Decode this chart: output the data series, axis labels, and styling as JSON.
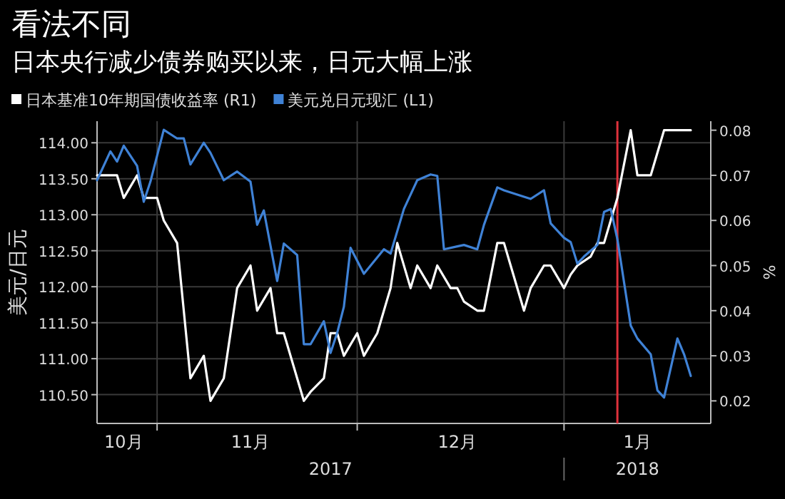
{
  "chart_data": {
    "type": "line",
    "title": "看法不同",
    "subtitle": "日本央行减少债券购买以来，日元大幅上涨",
    "ylabel": "美元/日元",
    "y2label": "%",
    "xlim": [
      "2017-10-23",
      "2018-01-23"
    ],
    "xticks": [
      {
        "value": "2017-10-27",
        "label": "10月"
      },
      {
        "value": "2017-11-01",
        "label": null
      },
      {
        "value": "2017-11-15",
        "label": "11月"
      },
      {
        "value": "2017-12-01",
        "label": null
      },
      {
        "value": "2017-12-16",
        "label": "12月"
      },
      {
        "value": "2018-01-01",
        "label": null
      },
      {
        "value": "2018-01-12",
        "label": "1月"
      }
    ],
    "ylim": [
      110.1,
      114.3
    ],
    "yticks": [
      {
        "value": 110.5,
        "label": "110.50"
      },
      {
        "value": 111,
        "label": "111.00"
      },
      {
        "value": 111.5,
        "label": "111.50"
      },
      {
        "value": 112,
        "label": "112.00"
      },
      {
        "value": 112.5,
        "label": "112.50"
      },
      {
        "value": 113,
        "label": "113.00"
      },
      {
        "value": 113.5,
        "label": "113.50"
      },
      {
        "value": 114,
        "label": "114.00"
      }
    ],
    "y2lim": [
      0.015,
      0.082
    ],
    "y2ticks": [
      0.02,
      0.03,
      0.04,
      0.05,
      0.06,
      0.07,
      0.08
    ],
    "grid": true,
    "legend": "top left",
    "marker": "none",
    "line_style": "solid",
    "ref_lines": [
      {
        "axis": "x",
        "value": "2018-01-09",
        "color": "#e0323c"
      }
    ],
    "annotations": [
      "2017",
      "2018"
    ],
    "series": [
      {
        "name": "日本基准10年期国债收益率 (R1)",
        "color": "#ffffff",
        "axis": "y2",
        "x": [
          "2017-10-23",
          "2017-10-26",
          "2017-10-27",
          "2017-10-29",
          "2017-10-30",
          "2017-11-01",
          "2017-11-02",
          "2017-11-04",
          "2017-11-06",
          "2017-11-08",
          "2017-11-09",
          "2017-11-11",
          "2017-11-12",
          "2017-11-13",
          "2017-11-15",
          "2017-11-16",
          "2017-11-18",
          "2017-11-19",
          "2017-11-20",
          "2017-11-22",
          "2017-11-23",
          "2017-11-24",
          "2017-11-26",
          "2017-11-27",
          "2017-11-28",
          "2017-11-29",
          "2017-12-01",
          "2017-12-02",
          "2017-12-04",
          "2017-12-06",
          "2017-12-07",
          "2017-12-09",
          "2017-12-10",
          "2017-12-12",
          "2017-12-13",
          "2017-12-15",
          "2017-12-16",
          "2017-12-17",
          "2017-12-19",
          "2017-12-20",
          "2017-12-22",
          "2017-12-23",
          "2017-12-24",
          "2017-12-26",
          "2017-12-27",
          "2017-12-29",
          "2017-12-30",
          "2018-01-01",
          "2018-01-02",
          "2018-01-03",
          "2018-01-05",
          "2018-01-06",
          "2018-01-07",
          "2018-01-08",
          "2018-01-09",
          "2018-01-11",
          "2018-01-12",
          "2018-01-14",
          "2018-01-15",
          "2018-01-16",
          "2018-01-20"
        ],
        "values": [
          0.07,
          0.07,
          0.065,
          0.07,
          0.065,
          0.065,
          0.06,
          0.055,
          0.025,
          0.03,
          0.02,
          0.025,
          0.035,
          0.045,
          0.05,
          0.04,
          0.045,
          0.035,
          0.035,
          0.025,
          0.02,
          0.022,
          0.025,
          0.035,
          0.035,
          0.03,
          0.035,
          0.03,
          0.035,
          0.045,
          0.055,
          0.045,
          0.05,
          0.045,
          0.05,
          0.045,
          0.045,
          0.042,
          0.04,
          0.04,
          0.055,
          0.055,
          0.05,
          0.04,
          0.045,
          0.05,
          0.05,
          0.045,
          0.048,
          0.05,
          0.052,
          0.055,
          0.055,
          0.06,
          0.065,
          0.08,
          0.07,
          0.07,
          0.075,
          0.08,
          0.08
        ]
      },
      {
        "name": "美元兑日元现汇 (L1)",
        "color": "#3f82d6",
        "x": [
          "2017-10-23",
          "2017-10-25",
          "2017-10-26",
          "2017-10-27",
          "2017-10-29",
          "2017-10-30",
          "2017-10-31",
          "2017-11-02",
          "2017-11-04",
          "2017-11-05",
          "2017-11-06",
          "2017-11-08",
          "2017-11-09",
          "2017-11-11",
          "2017-11-13",
          "2017-11-15",
          "2017-11-16",
          "2017-11-17",
          "2017-11-19",
          "2017-11-20",
          "2017-11-22",
          "2017-11-23",
          "2017-11-24",
          "2017-11-26",
          "2017-11-27",
          "2017-11-28",
          "2017-11-29",
          "2017-11-30",
          "2017-12-02",
          "2017-12-05",
          "2017-12-06",
          "2017-12-08",
          "2017-12-10",
          "2017-12-12",
          "2017-12-13",
          "2017-12-14",
          "2017-12-16",
          "2017-12-17",
          "2017-12-19",
          "2017-12-20",
          "2017-12-22",
          "2017-12-23",
          "2017-12-27",
          "2017-12-29",
          "2017-12-30",
          "2018-01-01",
          "2018-01-02",
          "2018-01-03",
          "2018-01-04",
          "2018-01-06",
          "2018-01-07",
          "2018-01-08",
          "2018-01-09",
          "2018-01-11",
          "2018-01-12",
          "2018-01-14",
          "2018-01-15",
          "2018-01-16",
          "2018-01-18",
          "2018-01-19",
          "2018-01-20"
        ],
        "values": [
          113.48,
          113.88,
          113.74,
          113.96,
          113.68,
          113.18,
          113.46,
          114.18,
          114.06,
          114.06,
          113.7,
          114.0,
          113.86,
          113.48,
          113.6,
          113.46,
          112.86,
          113.06,
          112.08,
          112.6,
          112.44,
          111.2,
          111.2,
          111.52,
          111.08,
          111.36,
          111.72,
          112.54,
          112.18,
          112.52,
          112.46,
          113.08,
          113.48,
          113.56,
          113.54,
          112.52,
          112.56,
          112.58,
          112.52,
          112.86,
          113.38,
          113.34,
          113.22,
          113.34,
          112.88,
          112.68,
          112.62,
          112.32,
          112.42,
          112.58,
          113.04,
          113.08,
          112.66,
          111.46,
          111.28,
          111.06,
          110.56,
          110.46,
          111.28,
          111.06,
          110.76
        ]
      }
    ]
  }
}
